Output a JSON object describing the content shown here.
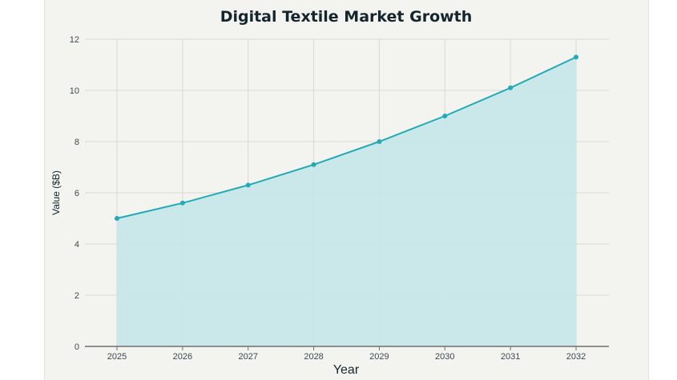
{
  "chart_data": {
    "type": "area",
    "title": "Digital Textile Market Growth",
    "xlabel": "Year",
    "ylabel": "Value ($B)",
    "x": [
      "2025",
      "2026",
      "2027",
      "2028",
      "2029",
      "2030",
      "2031",
      "2032"
    ],
    "series": [
      {
        "name": "Value ($B)",
        "values": [
          5.0,
          5.6,
          6.3,
          7.1,
          8.0,
          9.0,
          10.1,
          11.3
        ]
      }
    ],
    "ylim": [
      0,
      12
    ],
    "yticks": [
      0,
      2,
      4,
      6,
      8,
      10,
      12
    ],
    "grid": true,
    "colors": {
      "line": "#22aab6",
      "fill": "#c7e7e9",
      "grid": "#d9d9d4",
      "axis": "#707070"
    }
  }
}
